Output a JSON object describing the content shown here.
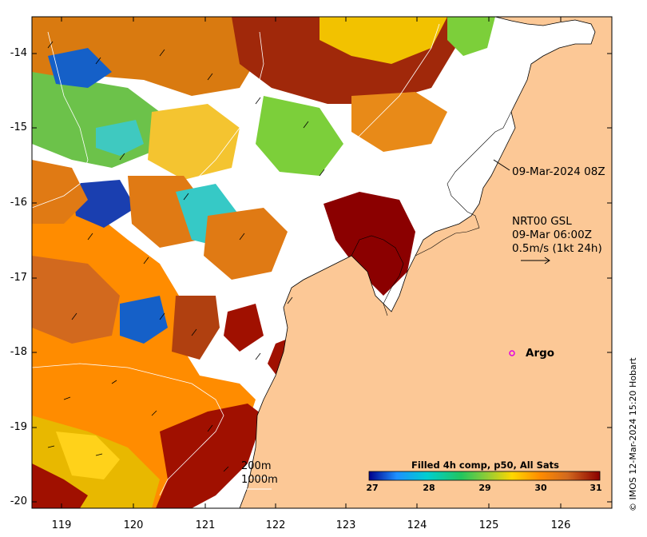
{
  "map": {
    "ocean_colormap_stops": [
      "#00008b",
      "#1e90ff",
      "#00ced1",
      "#22c55e",
      "#9acd32",
      "#ffd700",
      "#ff8c00",
      "#d2691e",
      "#8b0000"
    ],
    "land_color": "#fcc896",
    "frame_color": "#000000"
  },
  "axes": {
    "y_ticks": [
      "-14",
      "-15",
      "-16",
      "-17",
      "-18",
      "-19",
      "-20"
    ],
    "x_ticks": [
      "119",
      "120",
      "121",
      "122",
      "123",
      "124",
      "125",
      "126"
    ]
  },
  "annotations": {
    "timestamp": "09-Mar-2024 08Z",
    "current_source": "NRT00 GSL",
    "current_time": "09-Mar 06:00Z",
    "current_scale": "0.5m/s (1kt 24h)",
    "argo_label": "Argo",
    "isobath_1": "200m",
    "isobath_2": "1000m"
  },
  "colorbar": {
    "title": "Filled 4h comp, p50, All Sats",
    "ticks": [
      "27",
      "28",
      "29",
      "30",
      "31"
    ]
  },
  "credit": "© IMOS 12-Mar-2024 15:20 Hobart"
}
